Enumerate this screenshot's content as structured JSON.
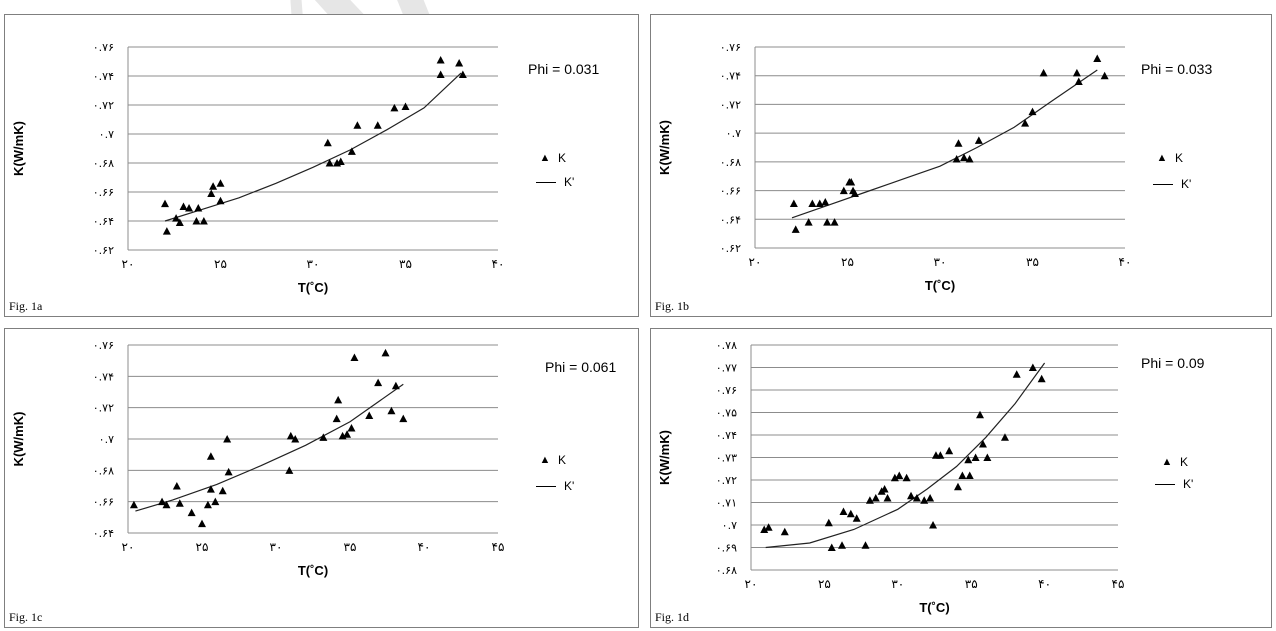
{
  "figures": [
    {
      "fig_label": "Fig. 1a",
      "phi": "Phi = 0.031",
      "legend": {
        "points": "K",
        "line": "K'"
      },
      "chart_data": {
        "type": "scatter",
        "xlabel": "T(˚C)",
        "ylabel": "K(W/mK)",
        "xlim": [
          20,
          40
        ],
        "ylim": [
          0.62,
          0.76
        ],
        "x_ticks": [
          20,
          25,
          30,
          35,
          40
        ],
        "x_tick_labels": [
          "۲۰",
          "۲۵",
          "۳۰",
          "۳۵",
          "۴۰"
        ],
        "y_ticks": [
          0.62,
          0.64,
          0.66,
          0.68,
          0.7,
          0.72,
          0.74,
          0.76
        ],
        "y_tick_labels": [
          "۰.۶۲",
          "۰.۶۴",
          "۰.۶۶",
          "۰.۶۸",
          "۰.۷",
          "۰.۷۲",
          "۰.۷۴",
          "۰.۷۶"
        ],
        "grid": true,
        "series": [
          {
            "name": "K",
            "marker": "triangle",
            "x": [
              22,
              22.1,
              22.6,
              22.8,
              23,
              23.3,
              23.7,
              23.8,
              24.1,
              24.5,
              24.6,
              25,
              25,
              30.8,
              30.9,
              31.3,
              31.5,
              32.1,
              32.4,
              33.5,
              34.4,
              35,
              36.9,
              36.9,
              37.9,
              38.1
            ],
            "y": [
              0.652,
              0.633,
              0.642,
              0.639,
              0.65,
              0.649,
              0.64,
              0.649,
              0.64,
              0.659,
              0.664,
              0.654,
              0.666,
              0.694,
              0.68,
              0.68,
              0.681,
              0.688,
              0.706,
              0.706,
              0.718,
              0.719,
              0.741,
              0.751,
              0.749,
              0.741
            ]
          },
          {
            "name": "K'",
            "type": "line",
            "x": [
              22,
              24,
              26,
              28,
              30,
              32,
              34,
              36,
              38
            ],
            "y": [
              0.64,
              0.648,
              0.656,
              0.666,
              0.677,
              0.689,
              0.703,
              0.718,
              0.742
            ]
          }
        ]
      }
    },
    {
      "fig_label": "Fig. 1b",
      "phi": "Phi = 0.033",
      "legend": {
        "points": "K",
        "line": "K'"
      },
      "chart_data": {
        "type": "scatter",
        "xlabel": "T(˚C)",
        "ylabel": "K(W/mK)",
        "xlim": [
          20,
          40
        ],
        "ylim": [
          0.62,
          0.76
        ],
        "x_ticks": [
          20,
          25,
          30,
          35,
          40
        ],
        "x_tick_labels": [
          "۲۰",
          "۲۵",
          "۳۰",
          "۳۵",
          "۴۰"
        ],
        "y_ticks": [
          0.62,
          0.64,
          0.66,
          0.68,
          0.7,
          0.72,
          0.74,
          0.76
        ],
        "y_tick_labels": [
          "۰.۶۲",
          "۰.۶۴",
          "۰.۶۶",
          "۰.۶۸",
          "۰.۷",
          "۰.۷۲",
          "۰.۷۴",
          "۰.۷۶"
        ],
        "grid": true,
        "series": [
          {
            "name": "K",
            "marker": "triangle",
            "x": [
              22.1,
              22.2,
              22.9,
              23.1,
              23.5,
              23.8,
              23.9,
              24.3,
              24.8,
              25.1,
              25.2,
              25.3,
              25.4,
              30.9,
              31,
              31.3,
              31.6,
              32.1,
              34.6,
              35,
              35.6,
              37.4,
              37.5,
              38.5,
              38.9
            ],
            "y": [
              0.651,
              0.633,
              0.638,
              0.651,
              0.651,
              0.652,
              0.638,
              0.638,
              0.66,
              0.666,
              0.666,
              0.66,
              0.658,
              0.682,
              0.693,
              0.683,
              0.682,
              0.695,
              0.707,
              0.715,
              0.742,
              0.742,
              0.736,
              0.752,
              0.74
            ]
          },
          {
            "name": "K'",
            "type": "line",
            "x": [
              22,
              24,
              26,
              28,
              30,
              32,
              34,
              36,
              38.5
            ],
            "y": [
              0.641,
              0.65,
              0.659,
              0.668,
              0.677,
              0.69,
              0.704,
              0.722,
              0.744
            ]
          }
        ]
      }
    },
    {
      "fig_label": "Fig. 1c",
      "phi": "Phi = 0.061",
      "legend": {
        "points": "K",
        "line": "K'"
      },
      "chart_data": {
        "type": "scatter",
        "xlabel": "T(˚C)",
        "ylabel": "K(W/mK)",
        "xlim": [
          20,
          45
        ],
        "ylim": [
          0.64,
          0.76
        ],
        "x_ticks": [
          20,
          25,
          30,
          35,
          40,
          45
        ],
        "x_tick_labels": [
          "۲۰",
          "۲۵",
          "۳۰",
          "۳۵",
          "۴۰",
          "۴۵"
        ],
        "y_ticks": [
          0.64,
          0.66,
          0.68,
          0.7,
          0.72,
          0.74,
          0.76
        ],
        "y_tick_labels": [
          "۰.۶۴",
          "۰.۶۶",
          "۰.۶۸",
          "۰.۷",
          "۰.۷۲",
          "۰.۷۴",
          "۰.۷۶"
        ],
        "grid": true,
        "series": [
          {
            "name": "K",
            "marker": "triangle",
            "x": [
              20.4,
              22.3,
              22.6,
              23.3,
              23.5,
              24.3,
              25,
              25.4,
              25.6,
              25.6,
              25.9,
              26.4,
              26.7,
              26.8,
              31,
              30.9,
              31.3,
              33.2,
              34.1,
              34.2,
              34.5,
              34.8,
              35.1,
              35.3,
              36.3,
              36.9,
              37.4,
              37.8,
              38.1,
              38.6
            ],
            "y": [
              0.658,
              0.66,
              0.658,
              0.67,
              0.659,
              0.653,
              0.646,
              0.658,
              0.668,
              0.689,
              0.66,
              0.667,
              0.7,
              0.679,
              0.702,
              0.68,
              0.7,
              0.701,
              0.713,
              0.725,
              0.702,
              0.703,
              0.707,
              0.752,
              0.715,
              0.736,
              0.755,
              0.718,
              0.734,
              0.713
            ]
          },
          {
            "name": "K'",
            "type": "line",
            "x": [
              20.5,
              23,
              26,
              29,
              32,
              35,
              38.6
            ],
            "y": [
              0.654,
              0.661,
              0.671,
              0.683,
              0.696,
              0.711,
              0.735
            ]
          }
        ]
      }
    },
    {
      "fig_label": "Fig. 1d",
      "phi": "Phi = 0.09",
      "legend": {
        "points": "K",
        "line": "K'"
      },
      "chart_data": {
        "type": "scatter",
        "xlabel": "T(˚C)",
        "ylabel": "K(W/mK)",
        "xlim": [
          20,
          45
        ],
        "ylim": [
          0.68,
          0.78
        ],
        "x_ticks": [
          20,
          25,
          30,
          35,
          40,
          45
        ],
        "x_tick_labels": [
          "۲۰",
          "۲۵",
          "۳۰",
          "۳۵",
          "۴۰",
          "۴۵"
        ],
        "y_ticks": [
          0.68,
          0.69,
          0.7,
          0.71,
          0.72,
          0.73,
          0.74,
          0.75,
          0.76,
          0.77,
          0.78
        ],
        "y_tick_labels": [
          "۰.۶۸",
          "۰.۶۹",
          "۰.۷",
          "۰.۷۱",
          "۰.۷۲",
          "۰.۷۳",
          "۰.۷۴",
          "۰.۷۵",
          "۰.۷۶",
          "۰.۷۷",
          "۰.۷۸"
        ],
        "grid": true,
        "series": [
          {
            "name": "K",
            "marker": "triangle",
            "x": [
              20.9,
              21.2,
              22.3,
              25.3,
              25.5,
              26.2,
              26.3,
              26.8,
              27.2,
              27.8,
              28.1,
              28.5,
              28.9,
              29.1,
              29.3,
              29.8,
              30.1,
              30.6,
              30.9,
              31.3,
              31.8,
              32.2,
              32.4,
              32.6,
              32.9,
              33.5,
              34.1,
              34.4,
              34.8,
              34.9,
              35.3,
              35.6,
              35.8,
              36.1,
              37.3,
              38.1,
              39.2,
              39.8
            ],
            "y": [
              0.698,
              0.699,
              0.697,
              0.701,
              0.69,
              0.691,
              0.706,
              0.705,
              0.703,
              0.691,
              0.711,
              0.712,
              0.715,
              0.716,
              0.712,
              0.721,
              0.722,
              0.721,
              0.713,
              0.712,
              0.711,
              0.712,
              0.7,
              0.731,
              0.731,
              0.733,
              0.717,
              0.722,
              0.729,
              0.722,
              0.73,
              0.749,
              0.736,
              0.73,
              0.739,
              0.767,
              0.77,
              0.765
            ]
          },
          {
            "name": "K'",
            "type": "line",
            "x": [
              21,
              24,
              27,
              30,
              32,
              34,
              36,
              38,
              40
            ],
            "y": [
              0.69,
              0.692,
              0.698,
              0.707,
              0.716,
              0.726,
              0.739,
              0.754,
              0.772
            ]
          }
        ]
      }
    }
  ]
}
